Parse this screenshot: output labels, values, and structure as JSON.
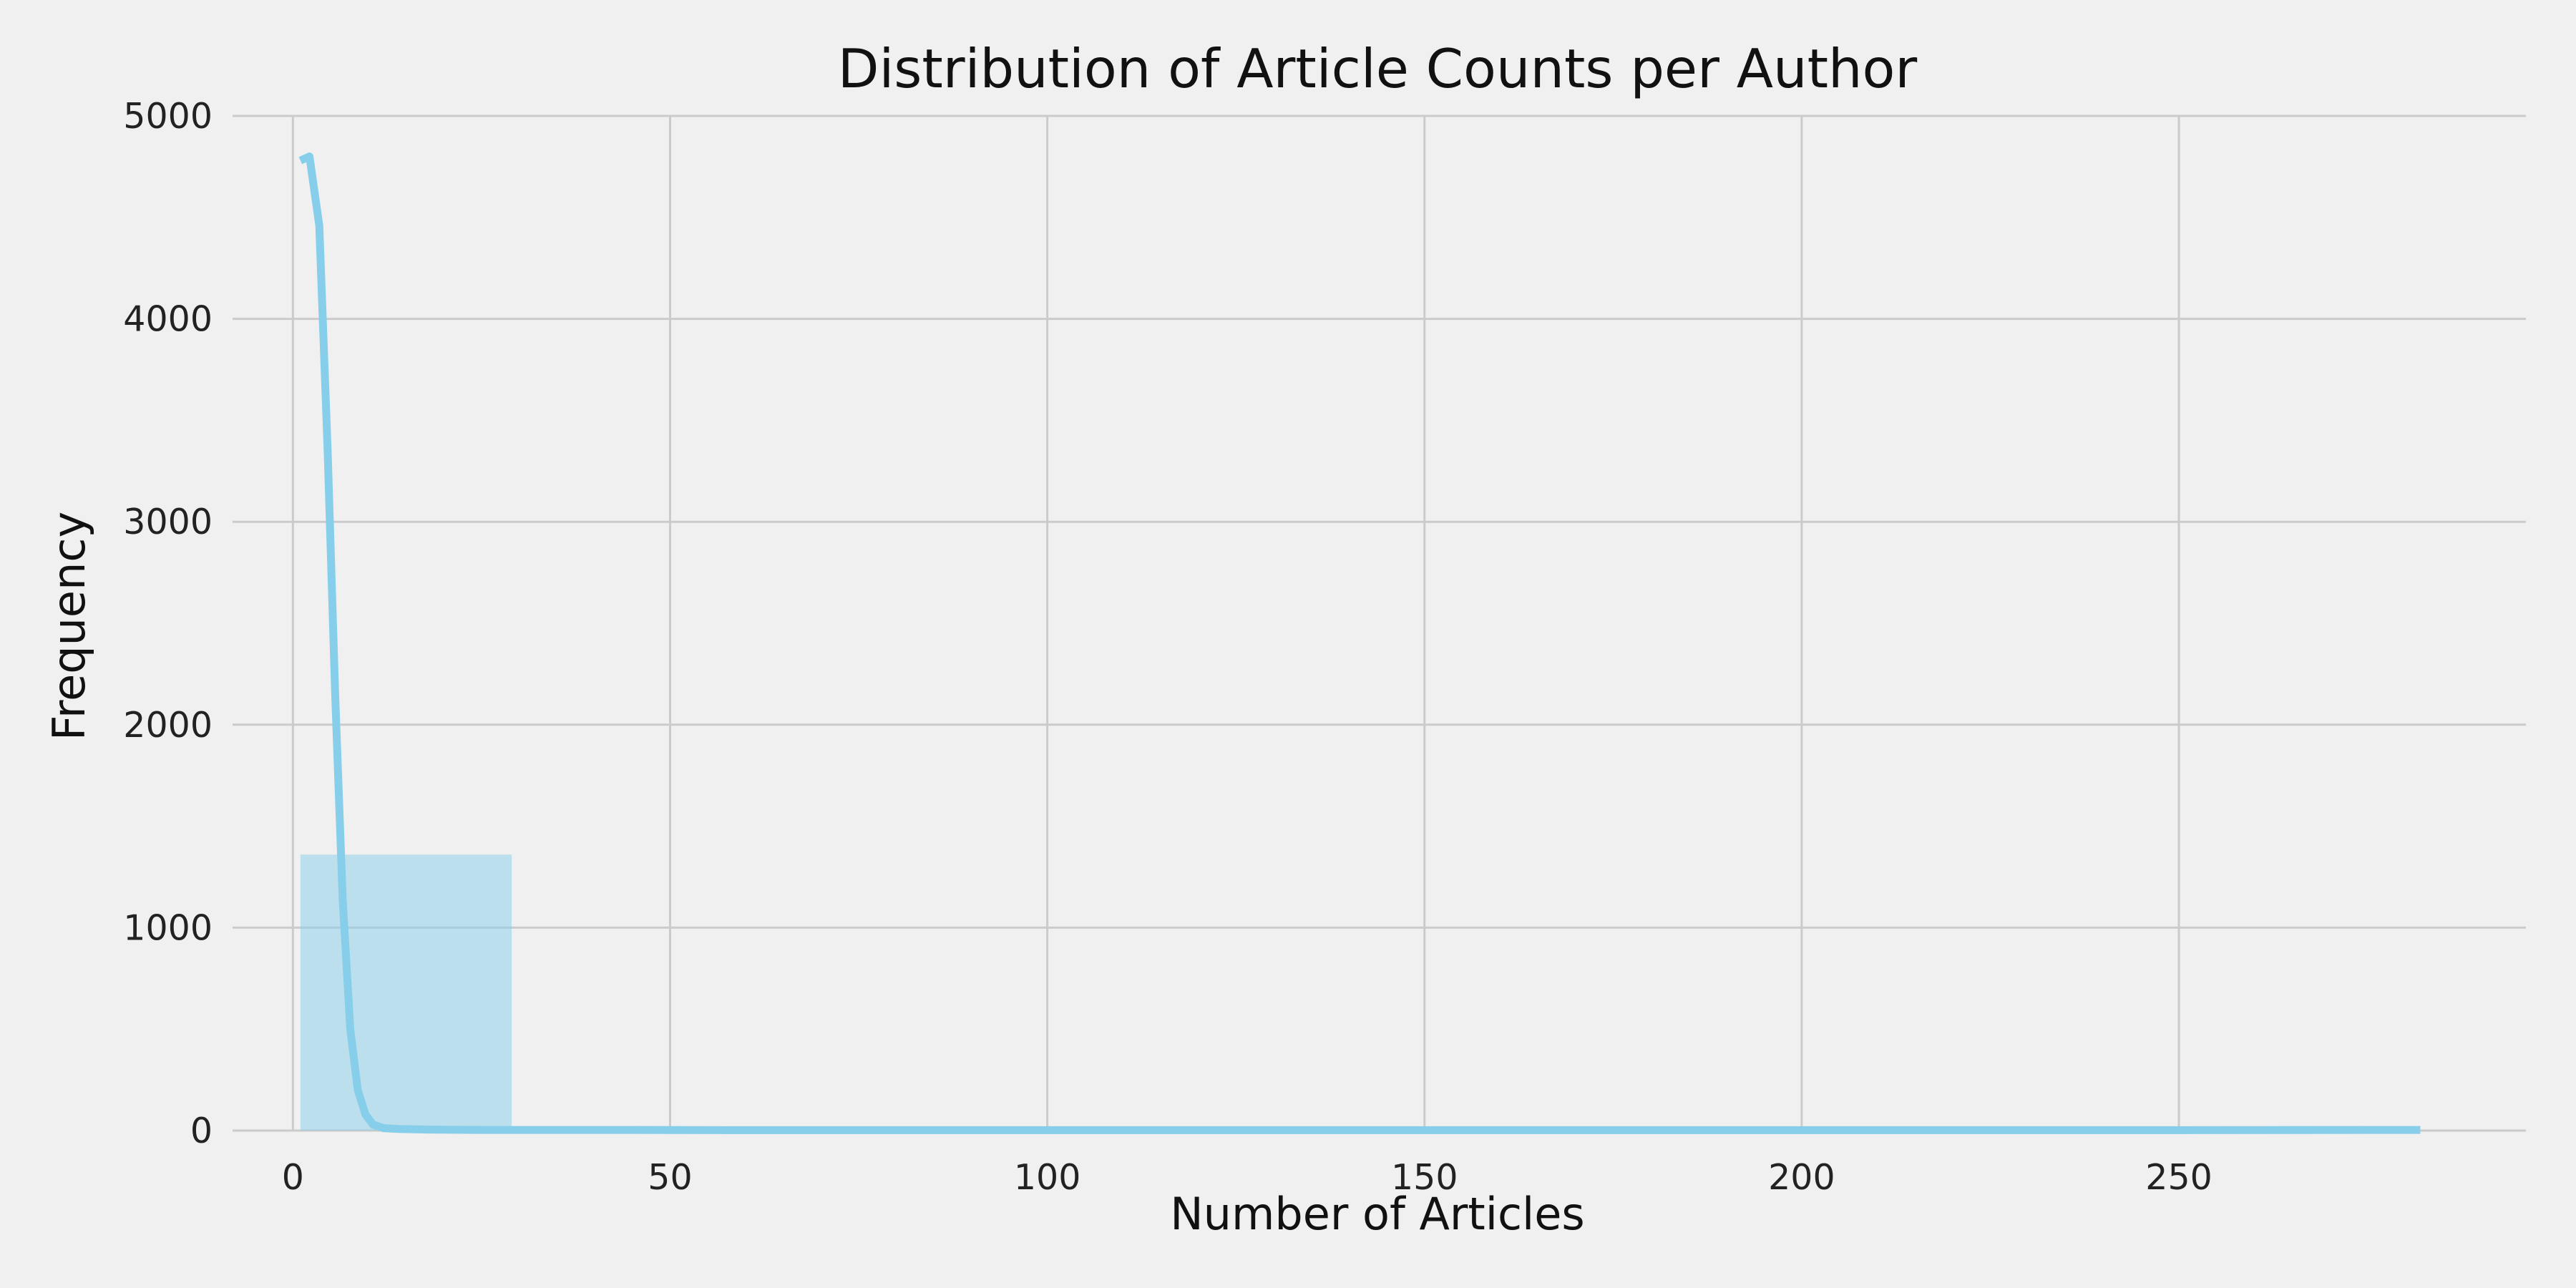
{
  "chart_data": {
    "type": "bar",
    "title": "Distribution of Article Counts per Author",
    "xlabel": "Number of Articles",
    "ylabel": "Frequency",
    "xlim": [
      -8,
      296
    ],
    "ylim": [
      0,
      5000
    ],
    "xticks": [
      0,
      50,
      100,
      150,
      200,
      250
    ],
    "yticks": [
      0,
      1000,
      2000,
      3000,
      4000,
      5000
    ],
    "grid": true,
    "colors": {
      "background": "#f0f0f0",
      "grid": "#cbcbcb",
      "bar": "#87ceeb",
      "kde_line": "#87ceeb"
    },
    "bins": [
      {
        "x0": 1,
        "x1": 29,
        "count": 1360
      },
      {
        "x0": 29,
        "x1": 57,
        "count": 3
      },
      {
        "x0": 57,
        "x1": 85,
        "count": 1
      },
      {
        "x0": 85,
        "x1": 113,
        "count": 1
      },
      {
        "x0": 113,
        "x1": 141,
        "count": 0
      },
      {
        "x0": 141,
        "x1": 169,
        "count": 1
      },
      {
        "x0": 169,
        "x1": 197,
        "count": 0
      },
      {
        "x0": 197,
        "x1": 225,
        "count": 0
      },
      {
        "x0": 225,
        "x1": 253,
        "count": 1
      },
      {
        "x0": 253,
        "x1": 282,
        "count": 1
      }
    ],
    "kde": {
      "x": [
        1,
        2.2,
        3.5,
        4.6,
        5.6,
        6.6,
        7.6,
        8.6,
        9.6,
        10.6,
        12,
        14,
        18,
        25,
        40,
        60,
        80,
        100,
        130,
        160,
        190,
        220,
        250,
        282
      ],
      "y": [
        4780,
        4800,
        4460,
        3360,
        2150,
        1140,
        500,
        200,
        80,
        30,
        12,
        8,
        5,
        3,
        3,
        2,
        2,
        2,
        2,
        2,
        2,
        2,
        2,
        3
      ]
    }
  }
}
